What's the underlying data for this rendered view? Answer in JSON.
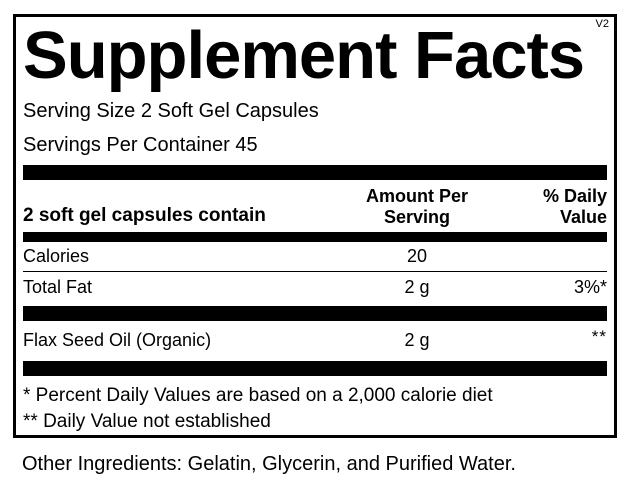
{
  "version_tag": "V2",
  "title": "Supplement Facts",
  "serving": {
    "size": "Serving Size 2 Soft Gel Capsules",
    "per_container": "Servings Per Container 45"
  },
  "table": {
    "header": {
      "col1": "2 soft gel capsules contain",
      "col2_line1": "Amount Per",
      "col2_line2": "Serving",
      "col3_line1": "% Daily",
      "col3_line2": "Value"
    },
    "rows": [
      {
        "name": "Calories",
        "amount": "20",
        "dv": ""
      },
      {
        "name": "Total Fat",
        "amount": "2 g",
        "dv": "3%*"
      },
      {
        "name": "Flax Seed Oil (Organic)",
        "amount": "2 g",
        "dv": "**"
      }
    ]
  },
  "footnotes": [
    "* Percent Daily Values are based on a 2,000 calorie diet",
    "** Daily Value not established"
  ],
  "other_ingredients": "Other Ingredients: Gelatin, Glycerin, and Purified Water.",
  "colors": {
    "ink": "#000000",
    "background": "#ffffff"
  }
}
